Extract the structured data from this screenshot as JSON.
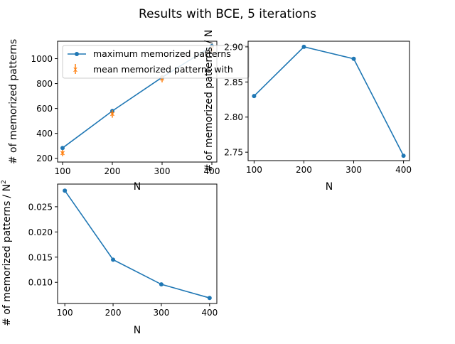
{
  "figure": {
    "title": "Results with BCE, 5 iterations",
    "colors": {
      "series_max": "#1f77b4",
      "series_mean": "#ff7f0e"
    }
  },
  "chart_data": [
    {
      "type": "line",
      "xlabel": "N",
      "ylabel": "# of memorized patterns",
      "x": [
        100,
        200,
        300,
        400
      ],
      "xlim": [
        90,
        410
      ],
      "ylim": [
        170,
        1140
      ],
      "xticks": [
        "100",
        "200",
        "300",
        "400"
      ],
      "yticks": [
        "200",
        "400",
        "600",
        "800",
        "1000"
      ],
      "ytick_values": [
        200,
        400,
        600,
        800,
        1000
      ],
      "legend_placement": "upper-left",
      "series": [
        {
          "name": "maximum memorized patterns",
          "kind": "line-marker",
          "values": [
            283,
            580,
            850,
            1100
          ]
        },
        {
          "name": "mean memorized patterns with",
          "kind": "errorbar",
          "values": [
            242,
            556,
            840,
            1080
          ],
          "errors": [
            25,
            30,
            30,
            30
          ]
        }
      ]
    },
    {
      "type": "line",
      "xlabel": "N",
      "ylabel": "# of memorized patterns / N",
      "x": [
        100,
        200,
        300,
        400
      ],
      "xlim": [
        88,
        412
      ],
      "ylim": [
        2.738,
        2.908
      ],
      "xticks": [
        "100",
        "200",
        "300",
        "400"
      ],
      "yticks": [
        "2.75",
        "2.80",
        "2.85",
        "2.90"
      ],
      "ytick_values": [
        2.75,
        2.8,
        2.85,
        2.9
      ],
      "series": [
        {
          "name": "",
          "kind": "line-marker",
          "values": [
            2.83,
            2.9,
            2.883,
            2.745
          ]
        }
      ]
    },
    {
      "type": "line",
      "xlabel": "N",
      "ylabel": "# of memorized patterns",
      "ylabel_suffix": "/ N",
      "x": [
        100,
        200,
        300,
        400
      ],
      "xlim": [
        85,
        415
      ],
      "ylim": [
        0.0058,
        0.0295
      ],
      "xticks": [
        "100",
        "200",
        "300",
        "400"
      ],
      "yticks": [
        "0.010",
        "0.015",
        "0.020",
        "0.025"
      ],
      "ytick_values": [
        0.01,
        0.015,
        0.02,
        0.025
      ],
      "series": [
        {
          "name": "",
          "kind": "line-marker",
          "values": [
            0.0282,
            0.0145,
            0.0096,
            0.0069
          ]
        }
      ]
    }
  ]
}
